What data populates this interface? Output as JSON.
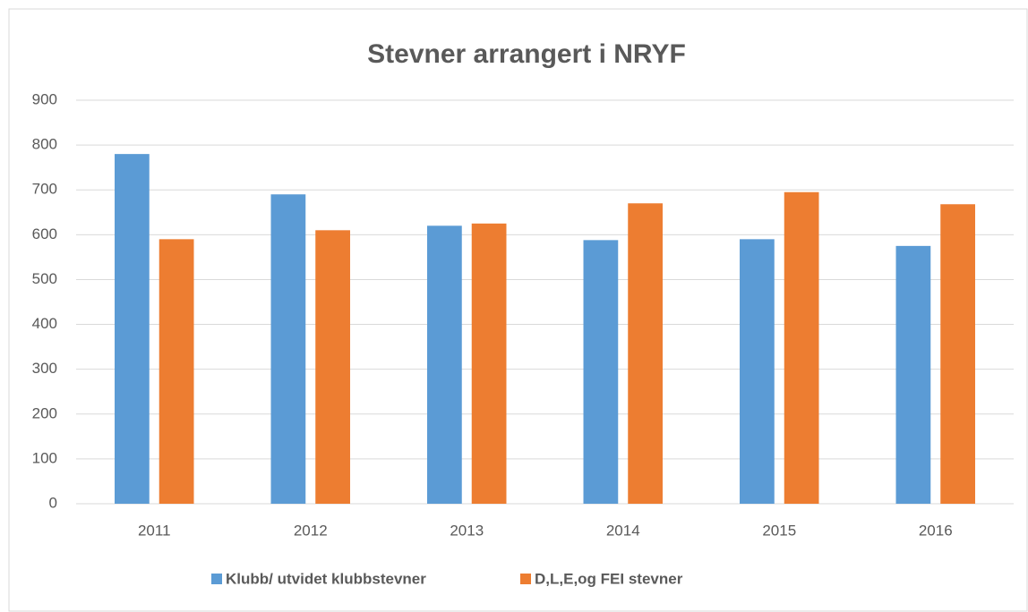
{
  "chart_data": {
    "type": "bar",
    "title": "Stevner arrangert i NRYF",
    "categories": [
      "2011",
      "2012",
      "2013",
      "2014",
      "2015",
      "2016"
    ],
    "series": [
      {
        "name": "Klubb/ utvidet klubbstevner",
        "color": "#5b9bd5",
        "values": [
          780,
          690,
          620,
          588,
          590,
          575
        ]
      },
      {
        "name": "D,L,E,og FEI stevner",
        "color": "#ed7d31",
        "values": [
          590,
          610,
          625,
          670,
          695,
          668
        ]
      }
    ],
    "ylim": [
      0,
      900
    ],
    "yticks": [
      0,
      100,
      200,
      300,
      400,
      500,
      600,
      700,
      800,
      900
    ],
    "grid": true,
    "legend": "bottom"
  }
}
